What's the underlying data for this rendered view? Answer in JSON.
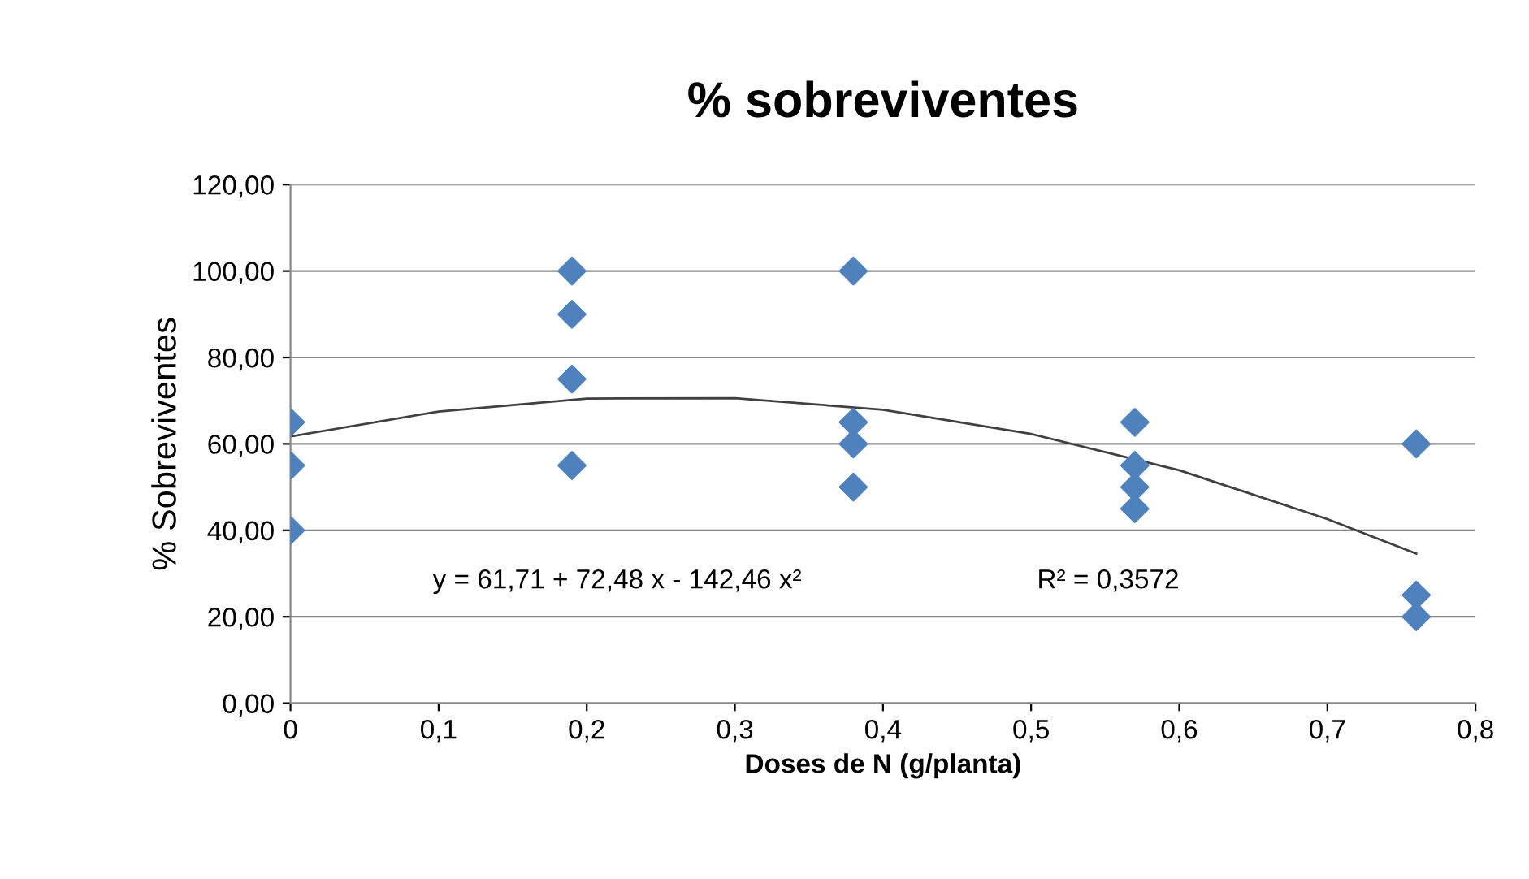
{
  "chart_data": {
    "type": "scatter",
    "title": "% sobreviventes",
    "xlabel": "Doses de N (g/planta)",
    "ylabel": "% Sobreviventes",
    "series": [
      {
        "color": "#4f81bd",
        "marker": "diamond",
        "x": [
          0,
          0,
          0,
          0.19,
          0.19,
          0.19,
          0.19,
          0.38,
          0.38,
          0.38,
          0.38,
          0.57,
          0.57,
          0.57,
          0.57,
          0.76,
          0.76,
          0.76
        ],
        "values": [
          65,
          55,
          40,
          100,
          90,
          75,
          55,
          100,
          65,
          60,
          50,
          65,
          55,
          50,
          45,
          60,
          25,
          20
        ]
      },
      {
        "type": "line",
        "color": "#404040",
        "marker": "none",
        "line_style": "solid",
        "x": [
          0,
          0.1,
          0.2,
          0.3,
          0.4,
          0.5,
          0.6,
          0.7,
          0.76
        ],
        "values": [
          61.7,
          67.5,
          70.5,
          70.6,
          67.9,
          62.3,
          53.9,
          42.6,
          34.6
        ]
      }
    ],
    "xlim": [
      0,
      0.8
    ],
    "ylim": [
      0,
      120
    ],
    "xticks": [
      0,
      {
        "value": 0.1,
        "label": "0,1"
      },
      {
        "value": 0.2,
        "label": "0,2"
      },
      {
        "value": 0.3,
        "label": "0,3"
      },
      {
        "value": 0.4,
        "label": "0,4"
      },
      {
        "value": 0.5,
        "label": "0,5"
      },
      {
        "value": 0.6,
        "label": "0,6"
      },
      {
        "value": 0.7,
        "label": "0,7"
      },
      {
        "value": 0.8,
        "label": "0,8"
      }
    ],
    "yticks": [
      {
        "value": 0,
        "label": "0,00"
      },
      {
        "value": 20,
        "label": "20,00"
      },
      {
        "value": 40,
        "label": "40,00"
      },
      {
        "value": 60,
        "label": "60,00"
      },
      {
        "value": 80,
        "label": "80,00"
      },
      {
        "value": 100,
        "label": "100,00"
      },
      {
        "value": 120,
        "label": "120,00"
      }
    ],
    "grid": "y",
    "legend": false,
    "annotations": [
      "y = 61,71 + 72,48 x - 142,46 x²",
      "R² = 0,3572"
    ]
  }
}
